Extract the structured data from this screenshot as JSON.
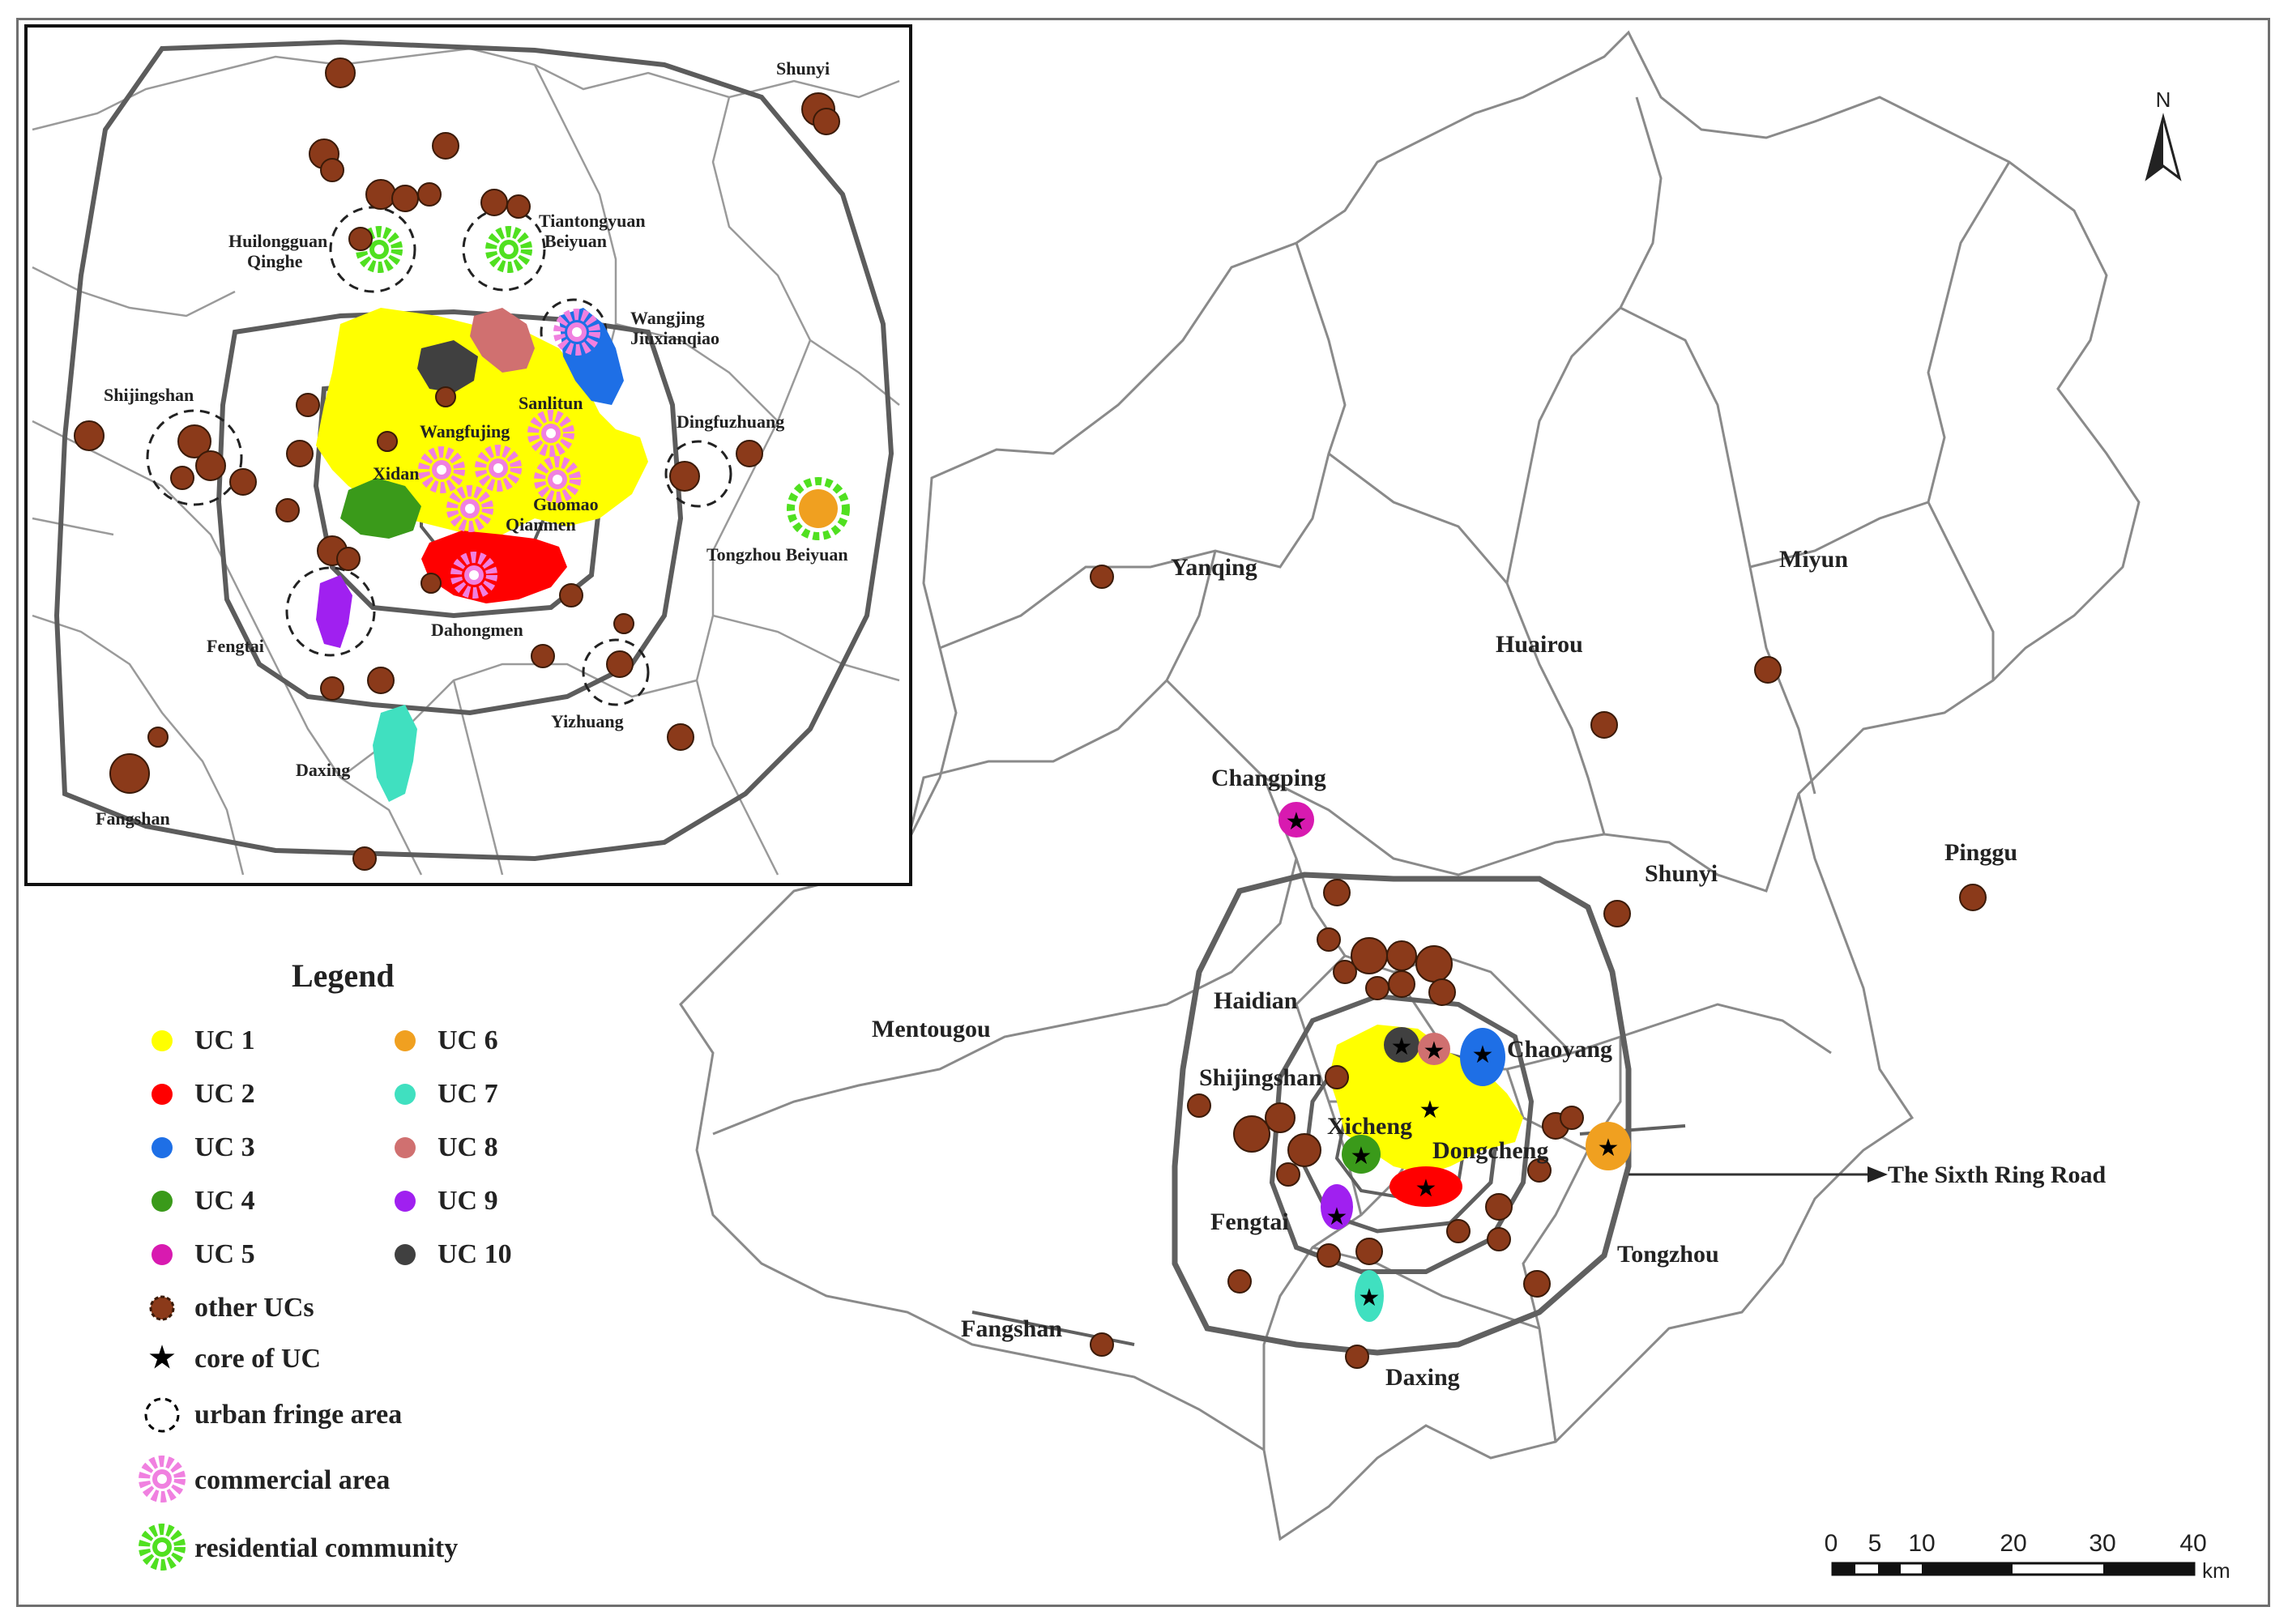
{
  "inset_labels": {
    "shunyi": "Shunyi",
    "huilongguan": "Huilongguan",
    "qinghe": "Qinghe",
    "tiantongyuan": "Tiantongyuan",
    "beiyuan": "Beiyuan",
    "wangjing": "Wangjing",
    "jiuxianqiao": "Jiuxianqiao",
    "sanlitun": "Sanlitun",
    "shijingshan": "Shijingshan",
    "wangfujing": "Wangfujing",
    "dingfuzhuang": "Dingfuzhuang",
    "xidan": "Xidan",
    "guomao": "Guomao",
    "qianmen": "Qianmen",
    "tongzhou_beiyuan": "Tongzhou Beiyuan",
    "fengtai": "Fengtai",
    "dahongmen": "Dahongmen",
    "yizhuang": "Yizhuang",
    "daxing": "Daxing",
    "fangshan": "Fangshan"
  },
  "district_labels": {
    "yanqing": "Yanqing",
    "huairou": "Huairou",
    "miyun": "Miyun",
    "changping": "Changping",
    "shunyi": "Shunyi",
    "pinggu": "Pinggu",
    "mentougou": "Mentougou",
    "haidian": "Haidian",
    "chaoyang": "Chaoyang",
    "shijingshan": "Shijingshan",
    "xicheng": "Xicheng",
    "dongcheng": "Dongcheng",
    "fengtai": "Fengtai",
    "tongzhou": "Tongzhou",
    "fangshan": "Fangshan",
    "daxing": "Daxing"
  },
  "annotation": "The Sixth Ring Road",
  "north_arrow": {
    "label": "N",
    "icon": "north-arrow-icon"
  },
  "scale_bar": {
    "ticks": [
      "0",
      "5",
      "10",
      "20",
      "30",
      "40"
    ],
    "unit": "km"
  },
  "legend": {
    "title": "Legend",
    "items": [
      {
        "label": "UC 1",
        "color": "#ffff00",
        "icon": "dot-icon"
      },
      {
        "label": "UC 2",
        "color": "#ff0000",
        "icon": "dot-icon"
      },
      {
        "label": "UC 3",
        "color": "#1e6fe6",
        "icon": "dot-icon"
      },
      {
        "label": "UC 4",
        "color": "#3a9a1a",
        "icon": "dot-icon"
      },
      {
        "label": "UC 5",
        "color": "#d81ab0",
        "icon": "dot-icon"
      },
      {
        "label": "UC 6",
        "color": "#f0a020",
        "icon": "dot-icon"
      },
      {
        "label": "UC 7",
        "color": "#40e0c0",
        "icon": "dot-icon"
      },
      {
        "label": "UC 8",
        "color": "#d07070",
        "icon": "dot-icon"
      },
      {
        "label": "UC 9",
        "color": "#a020f0",
        "icon": "dot-icon"
      },
      {
        "label": "UC 10",
        "color": "#404040",
        "icon": "dot-icon"
      },
      {
        "label": "other UCs",
        "color": "#8b3a1a",
        "icon": "cluster-icon"
      },
      {
        "label": "core of UC",
        "color": "#000000",
        "icon": "star-icon"
      },
      {
        "label": "urban fringe area",
        "color": "#000000",
        "icon": "dashed-circle-icon"
      },
      {
        "label": "commercial area",
        "color": "#f080e0",
        "icon": "gear-icon"
      },
      {
        "label": "residential community",
        "color": "#50e020",
        "icon": "gear-icon"
      }
    ]
  }
}
